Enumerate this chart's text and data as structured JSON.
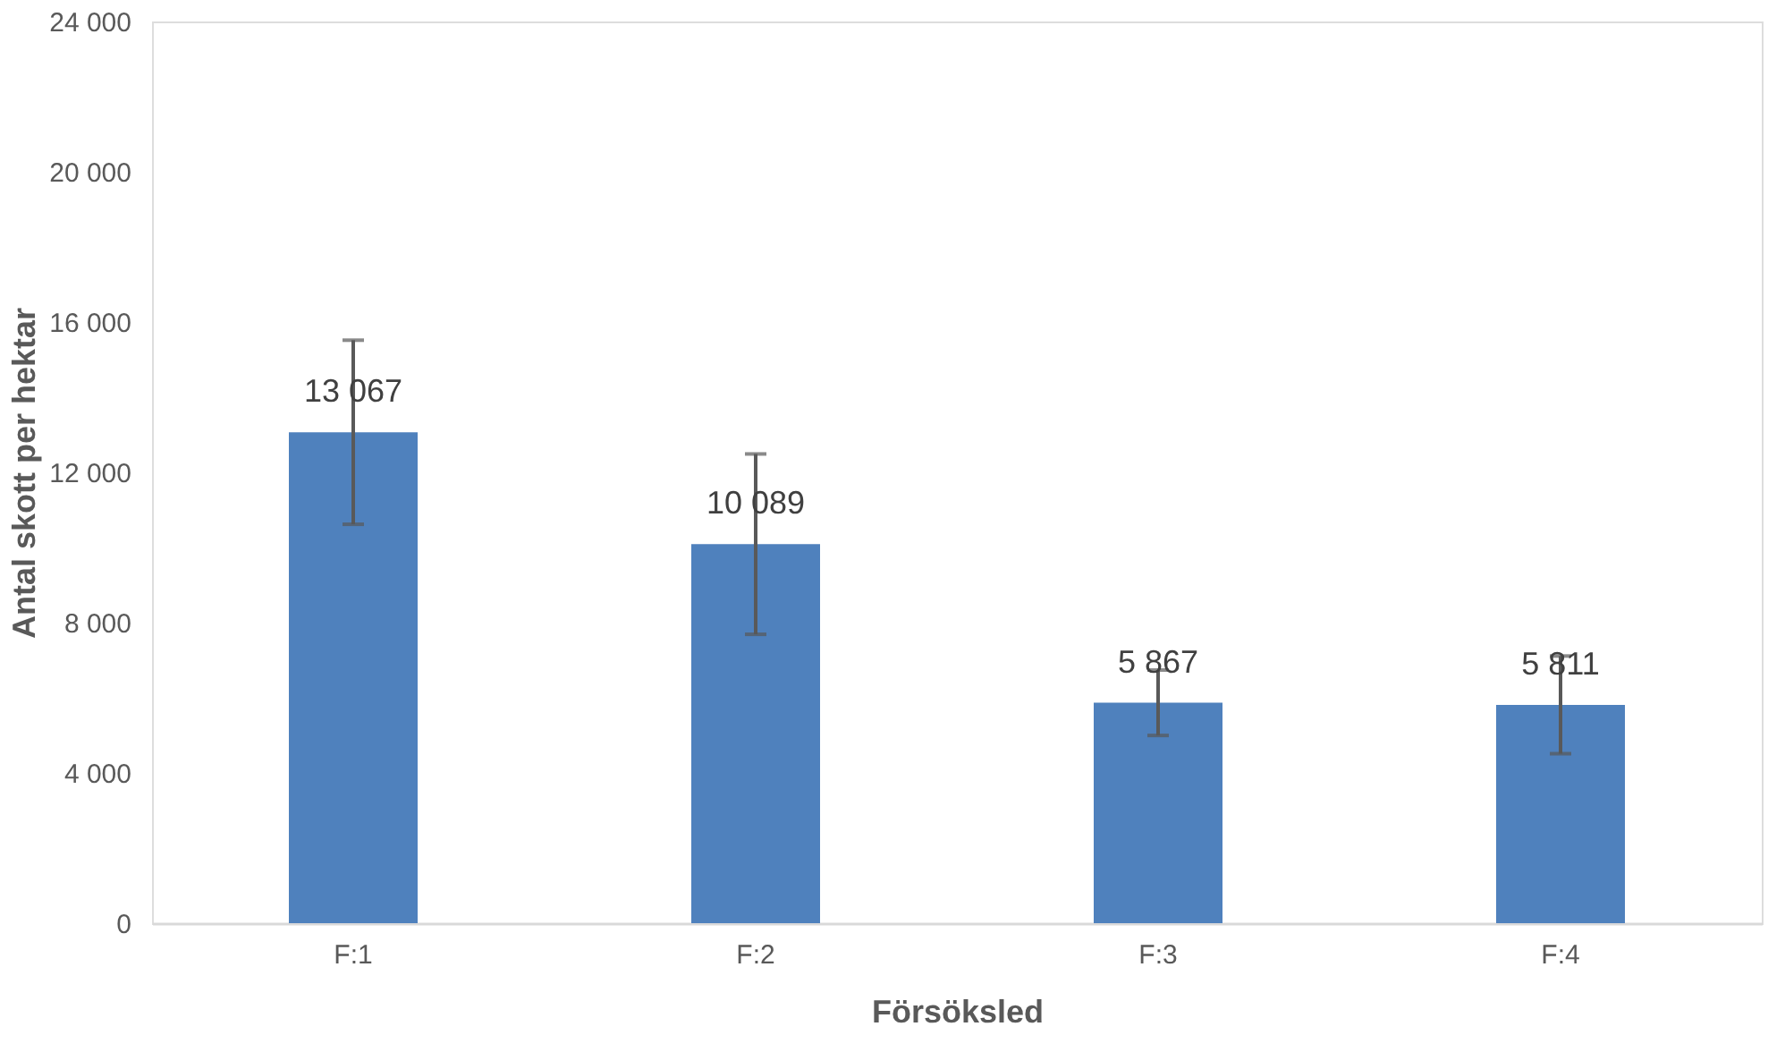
{
  "chart_data": {
    "type": "bar",
    "xlabel": "Försöksled",
    "ylabel": "Antal skott per hektar",
    "categories": [
      "F:1",
      "F:2",
      "F:3",
      "F:4"
    ],
    "values": [
      13067,
      10089,
      5867,
      5811
    ],
    "value_labels": [
      "13 067",
      "10 089",
      "5 867",
      "5 811"
    ],
    "errors": [
      2450,
      2400,
      870,
      1300
    ],
    "color": "#4f81bd",
    "ylim": [
      0,
      24000
    ],
    "yticks": [
      {
        "value": 0,
        "label": "0"
      },
      {
        "value": 4000,
        "label": "4 000"
      },
      {
        "value": 8000,
        "label": "8 000"
      },
      {
        "value": 12000,
        "label": "12 000"
      },
      {
        "value": 16000,
        "label": "16 000"
      },
      {
        "value": 20000,
        "label": "20 000"
      },
      {
        "value": 24000,
        "label": "24 000"
      }
    ],
    "grid": false
  }
}
